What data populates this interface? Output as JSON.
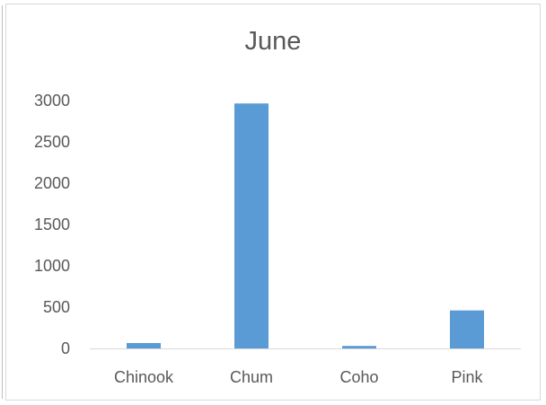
{
  "chart_data": {
    "type": "bar",
    "title": "June",
    "categories": [
      "Chinook",
      "Chum",
      "Coho",
      "Pink"
    ],
    "values": [
      65,
      2965,
      30,
      460
    ],
    "xlabel": "",
    "ylabel": "",
    "ylim": [
      0,
      3000
    ],
    "yticks": [
      "0",
      "500",
      "1000",
      "1500",
      "2000",
      "2500",
      "3000"
    ],
    "grid": false,
    "legend": "none",
    "bar_color": "#5b9bd5",
    "axis_color": "#d9d9d9",
    "text_color": "#595959"
  }
}
